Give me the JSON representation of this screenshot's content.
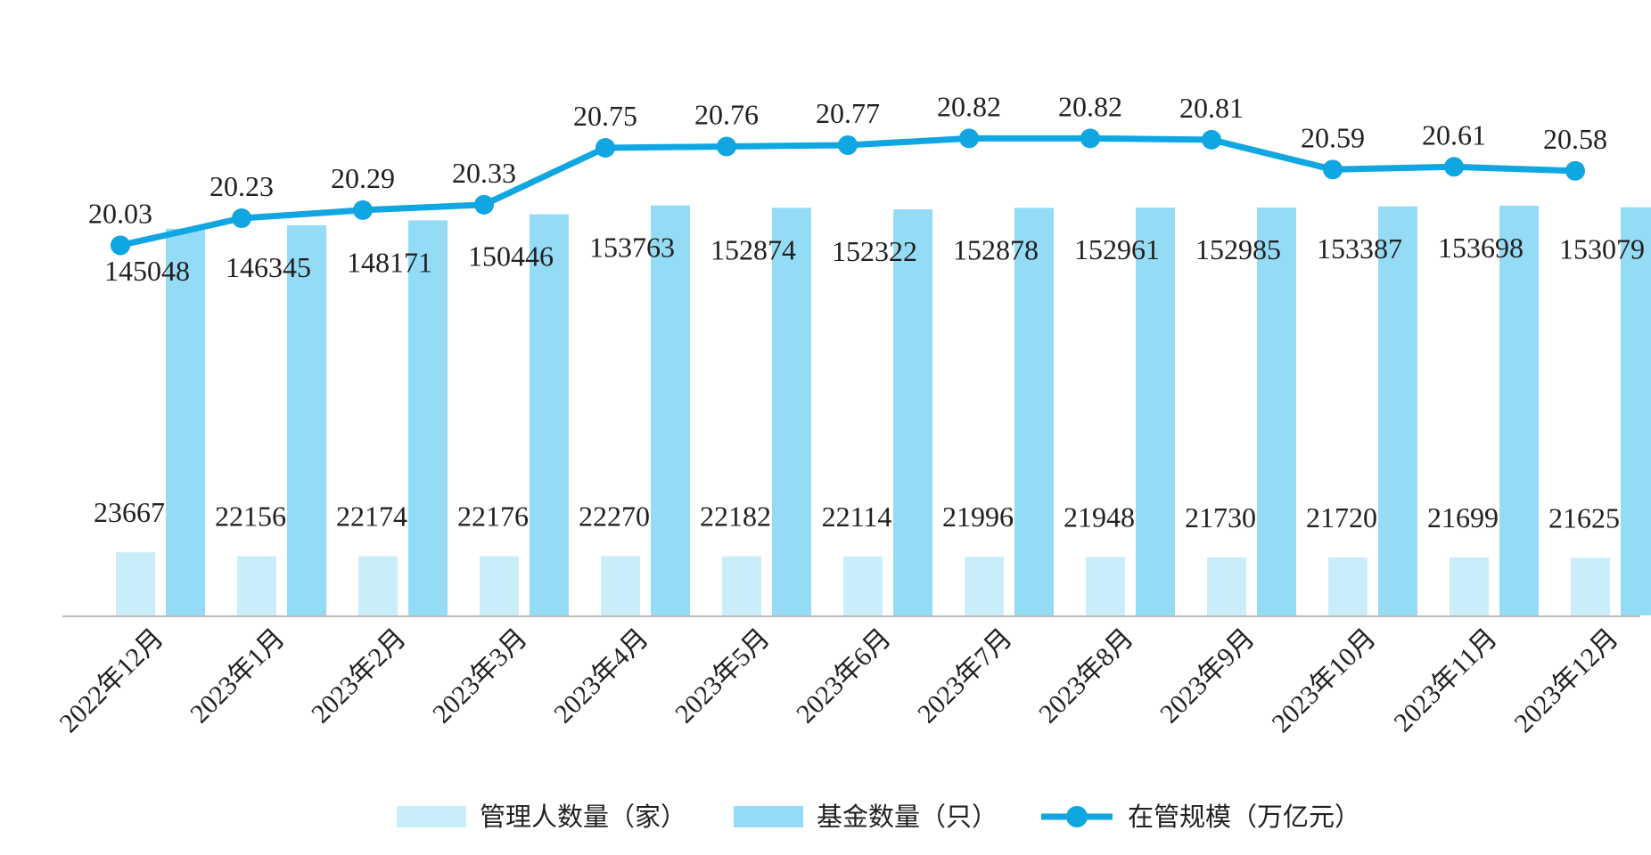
{
  "chart_data": {
    "type": "bar",
    "categories": [
      "2022年12月",
      "2023年1月",
      "2023年2月",
      "2023年3月",
      "2023年4月",
      "2023年5月",
      "2023年6月",
      "2023年7月",
      "2023年8月",
      "2023年9月",
      "2023年10月",
      "2023年11月",
      "2023年12月"
    ],
    "series": [
      {
        "name": "管理人数量（家）",
        "type": "bar",
        "color": "#c9eef9",
        "values": [
          23667,
          22156,
          22174,
          22176,
          22270,
          22182,
          22114,
          21996,
          21948,
          21730,
          21720,
          21699,
          21625
        ]
      },
      {
        "name": "基金数量（只）",
        "type": "bar",
        "color": "#94dcf6",
        "values": [
          145048,
          146345,
          148171,
          150446,
          153763,
          152874,
          152322,
          152878,
          152961,
          152985,
          153387,
          153698,
          153079
        ]
      },
      {
        "name": "在管规模（万亿元）",
        "type": "line",
        "color": "#0fa6e1",
        "values": [
          20.03,
          20.23,
          20.29,
          20.33,
          20.75,
          20.76,
          20.77,
          20.82,
          20.82,
          20.81,
          20.59,
          20.61,
          20.58
        ]
      }
    ],
    "bar_axis_range": [
      0,
      160000
    ],
    "line_axis_range": [
      18.5,
      21.0
    ],
    "legend_position": "bottom",
    "grid": false,
    "axis_line_color": "#bbbbbb"
  }
}
